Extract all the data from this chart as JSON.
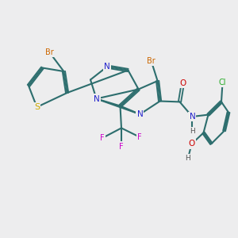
{
  "bg_color": "#ededee",
  "bond_color": "#2d6e6e",
  "bond_width": 1.5,
  "atom_colors": {
    "Br": "#cc6600",
    "S": "#ccaa00",
    "N": "#2222cc",
    "O": "#cc0000",
    "F": "#cc00cc",
    "Cl": "#22aa22",
    "H": "#555555"
  }
}
